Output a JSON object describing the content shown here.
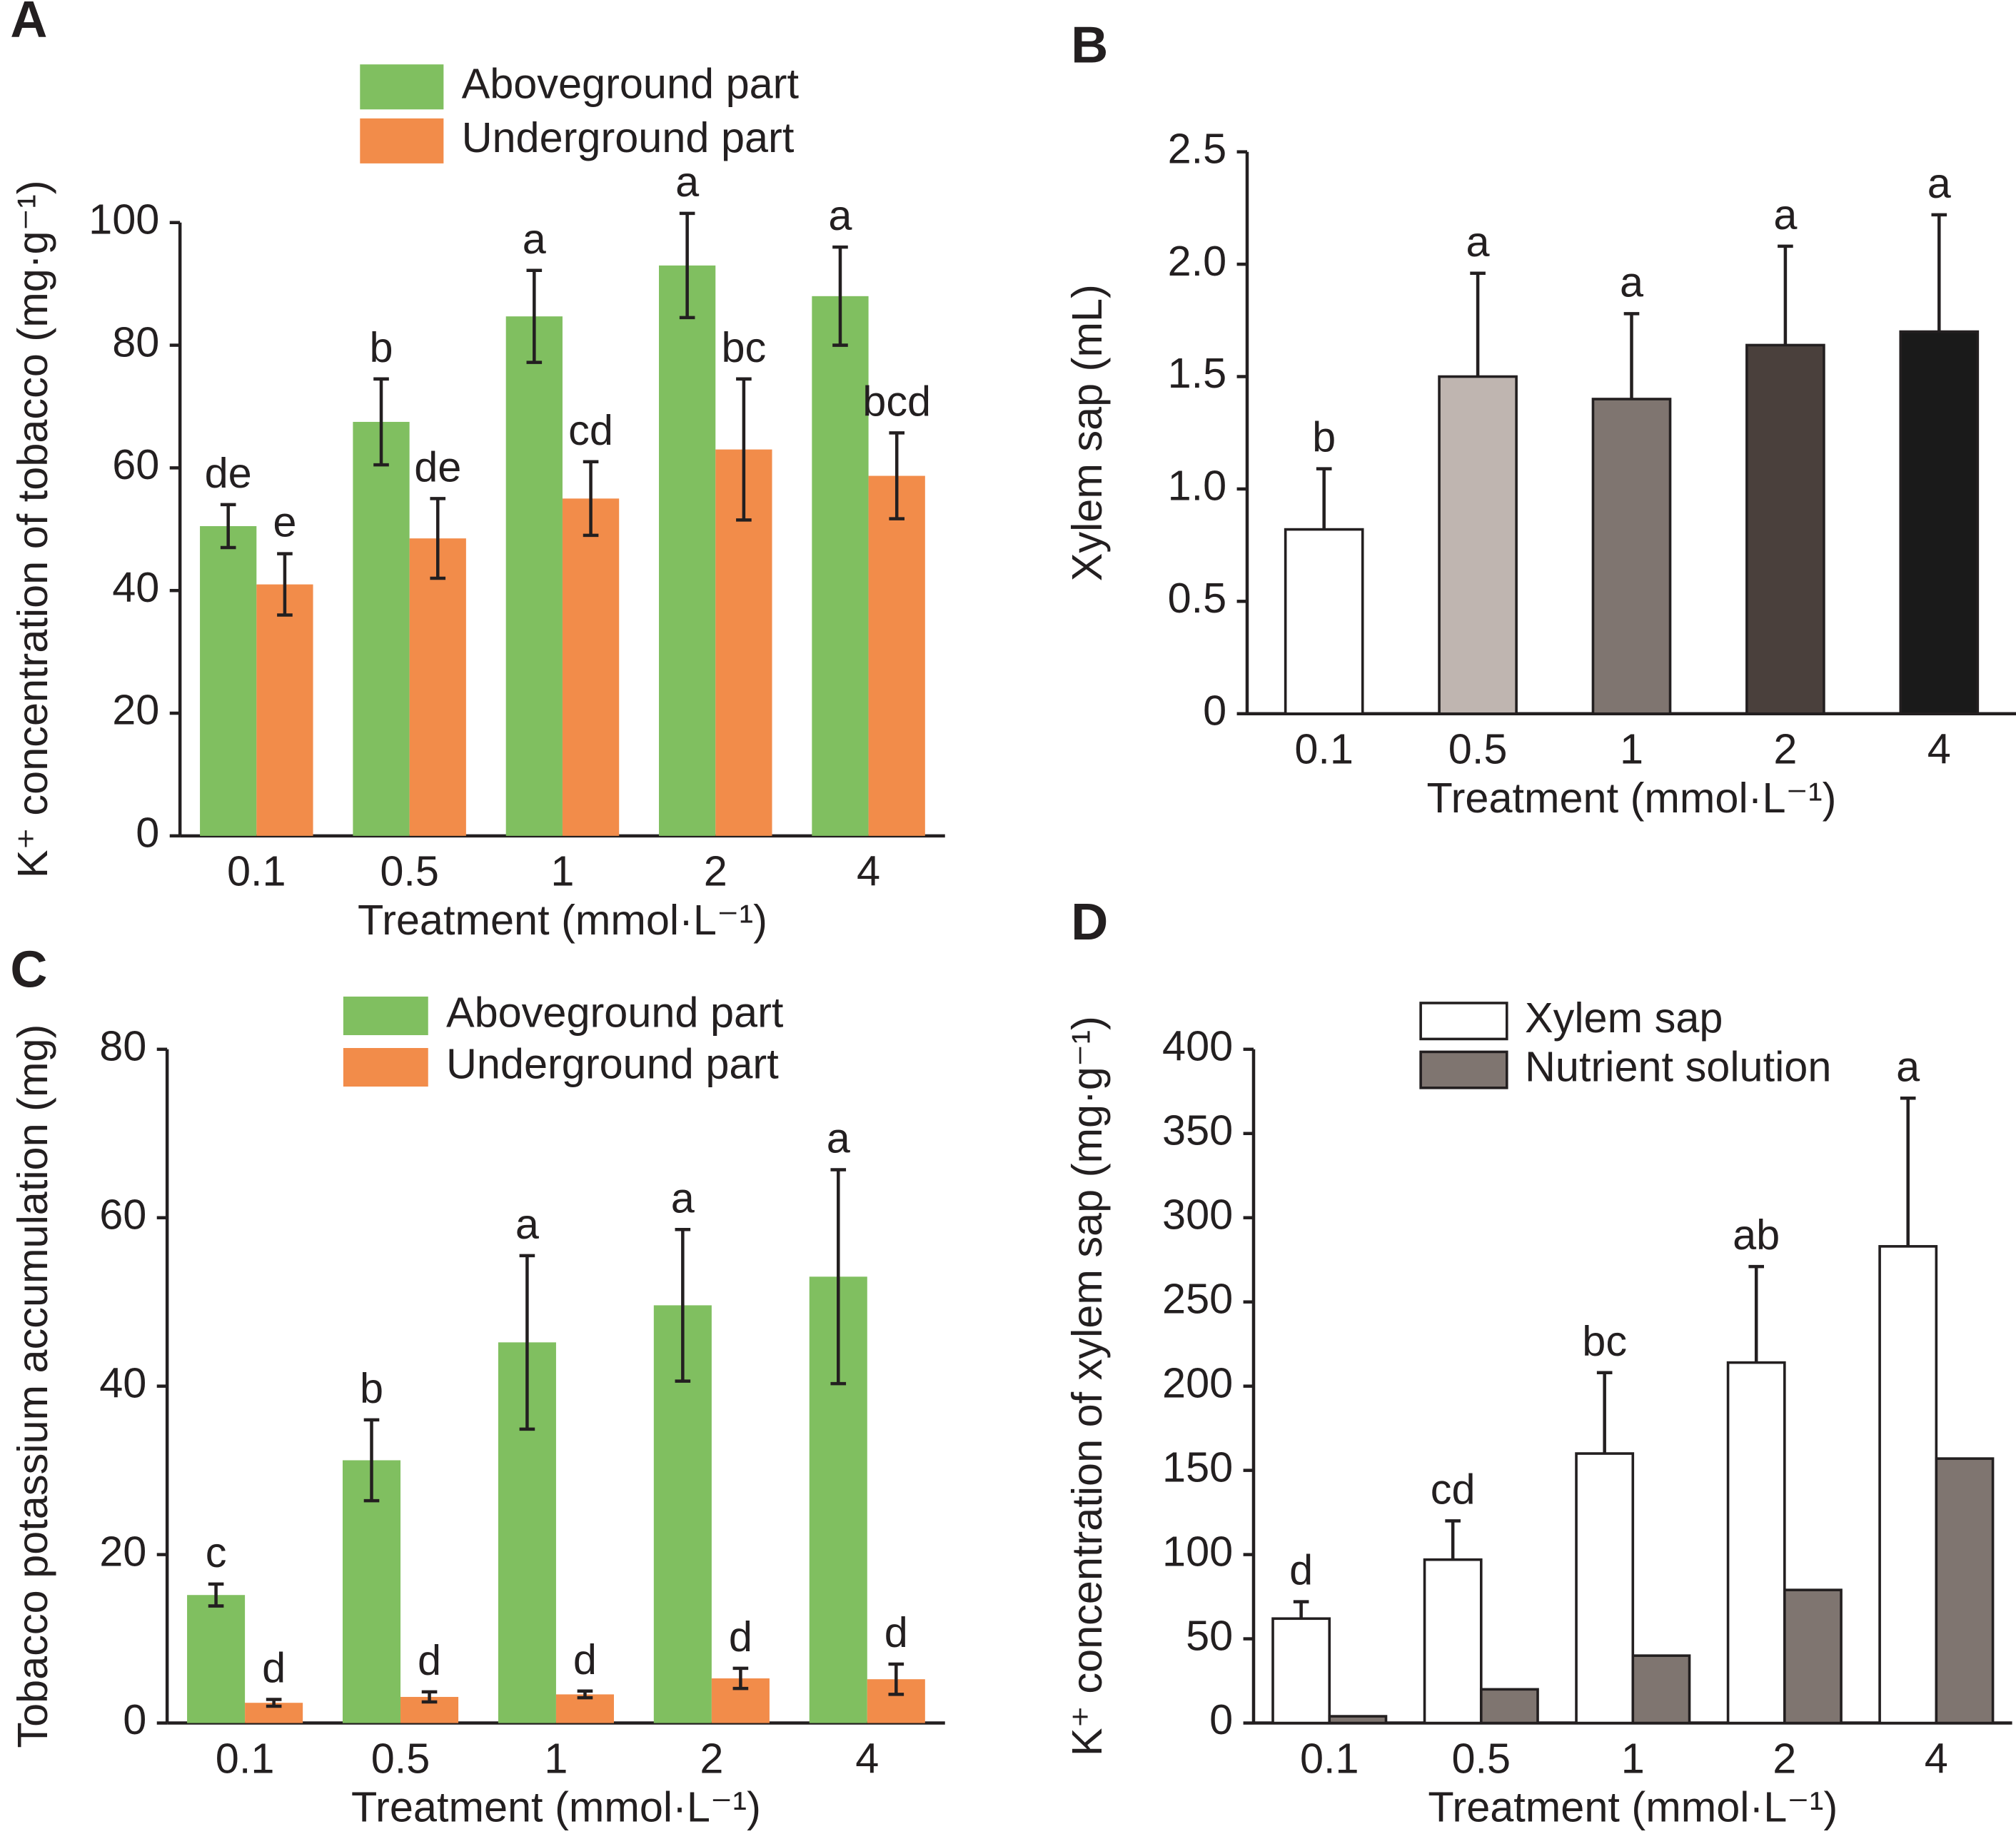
{
  "chart_data": [
    {
      "type": "bar",
      "panel": "A",
      "y_label": "K⁺ concentration of tobacco (mg·g⁻¹)",
      "x_label": "Treatment (mmol·L⁻¹)",
      "categories": [
        "0.1",
        "0.5",
        "1",
        "2",
        "4"
      ],
      "ylim": [
        0,
        100
      ],
      "yticks": [
        0,
        20,
        40,
        60,
        80,
        100
      ],
      "series": [
        {
          "name": "Aboveground part",
          "color": "#80bf60",
          "values": [
            50.5,
            67.5,
            84.7,
            93,
            88
          ],
          "errors": [
            3.5,
            7,
            7.5,
            8.5,
            8
          ],
          "letters": [
            "de",
            "b",
            "a",
            "a",
            "a"
          ]
        },
        {
          "name": "Underground part",
          "color": "#f28c4a",
          "values": [
            41,
            48.5,
            55,
            63,
            58.7
          ],
          "errors": [
            5,
            6.5,
            6,
            11.5,
            7
          ],
          "letters": [
            "e",
            "de",
            "cd",
            "bc",
            "bcd"
          ]
        }
      ]
    },
    {
      "type": "bar",
      "panel": "B",
      "y_label": "Xylem sap (mL)",
      "x_label": "Treatment (mmol·L⁻¹)",
      "categories": [
        "0.1",
        "0.5",
        "1",
        "2",
        "4"
      ],
      "ylim": [
        0,
        2.5
      ],
      "yticks": [
        0,
        0.5,
        {
          "value": 1,
          "label": "1.0"
        },
        1.5,
        {
          "value": 2,
          "label": "2.0"
        },
        2.5
      ],
      "series": [
        {
          "colors": [
            "#ffffff",
            "#bfb5b0",
            "#7f7570",
            "#4a403c",
            "#1a1a1a"
          ],
          "values": [
            0.82,
            1.5,
            1.4,
            1.64,
            1.7
          ],
          "errors": [
            0.27,
            0.46,
            0.38,
            0.44,
            0.52
          ],
          "letters": [
            "b",
            "a",
            "a",
            "a",
            "a"
          ]
        }
      ]
    },
    {
      "type": "bar",
      "panel": "C",
      "y_label": "Tobacco potassium accumulation (mg)",
      "x_label": "Treatment (mmol·L⁻¹)",
      "categories": [
        "0.1",
        "0.5",
        "1",
        "2",
        "4"
      ],
      "ylim": [
        0,
        80
      ],
      "yticks": [
        0,
        20,
        40,
        60,
        80
      ],
      "series": [
        {
          "name": "Aboveground part",
          "color": "#80bf60",
          "values": [
            15.2,
            31.2,
            45.2,
            49.6,
            53
          ],
          "errors": [
            1.3,
            4.8,
            10.3,
            9,
            12.7
          ],
          "letters": [
            "c",
            "b",
            "a",
            "a",
            "a"
          ]
        },
        {
          "name": "Underground part",
          "color": "#f28c4a",
          "values": [
            2.4,
            3.1,
            3.4,
            5.3,
            5.2
          ],
          "errors": [
            0.4,
            0.6,
            0.4,
            1.2,
            1.8
          ],
          "letters": [
            "d",
            "d",
            "d",
            "d",
            "d"
          ]
        }
      ]
    },
    {
      "type": "bar",
      "panel": "D",
      "y_label": "K⁺ concentration of xylem sap (mg·g⁻¹)",
      "x_label": "Treatment (mmol·L⁻¹)",
      "categories": [
        "0.1",
        "0.5",
        "1",
        "2",
        "4"
      ],
      "ylim": [
        0,
        400
      ],
      "yticks": [
        0,
        50,
        100,
        150,
        200,
        250,
        300,
        350,
        400
      ],
      "series": [
        {
          "name": "Xylem sap",
          "color": "#ffffff",
          "values": [
            62,
            97,
            160,
            214,
            283
          ],
          "errors": [
            10,
            23,
            48,
            57,
            88
          ],
          "letters": [
            "d",
            "cd",
            "bc",
            "ab",
            "a"
          ]
        },
        {
          "name": "Nutrient solution",
          "color": "#7f7570",
          "values": [
            4,
            20,
            40,
            79,
            157
          ]
        }
      ]
    }
  ]
}
